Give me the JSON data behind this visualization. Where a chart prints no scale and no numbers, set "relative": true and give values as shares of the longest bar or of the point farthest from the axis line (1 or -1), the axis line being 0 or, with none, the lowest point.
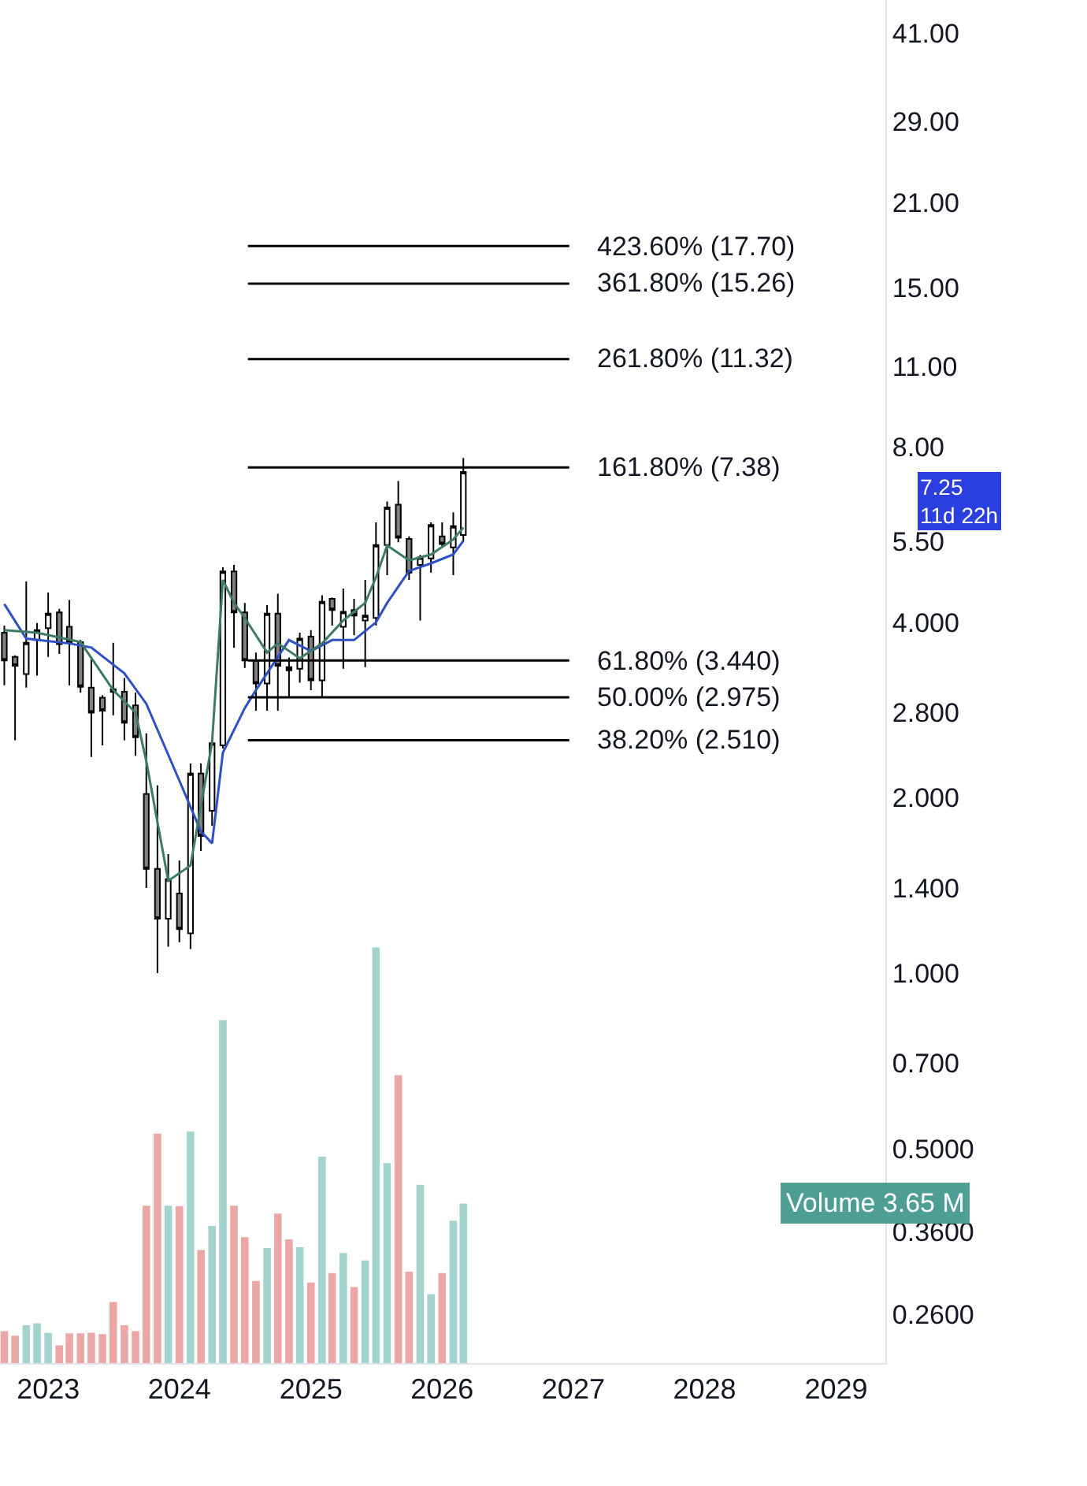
{
  "chart_data": [
    {
      "type": "candlestick",
      "log": "y",
      "tick_labels": "y",
      "x": [
        "2022-09",
        "2022-10",
        "2022-11",
        "2022-12",
        "2023-01",
        "2023-02",
        "2023-03",
        "2023-04",
        "2023-05",
        "2023-06",
        "2023-07",
        "2023-08",
        "2023-09",
        "2023-10",
        "2023-11",
        "2023-12",
        "2024-01",
        "2024-02",
        "2024-03",
        "2024-04",
        "2024-05",
        "2024-06",
        "2024-07",
        "2024-08",
        "2024-09",
        "2024-10",
        "2024-11",
        "2024-12",
        "2025-01",
        "2025-02",
        "2025-03",
        "2025-04",
        "2025-05",
        "2025-06",
        "2025-07",
        "2025-08",
        "2025-09",
        "2025-10",
        "2025-11",
        "2025-12",
        "2026-01",
        "2026-02",
        "2026-03"
      ],
      "ohlc": [
        [
          3.84,
          3.95,
          3.12,
          3.44
        ],
        [
          3.49,
          3.51,
          2.51,
          3.37
        ],
        [
          3.26,
          4.7,
          3.09,
          3.69
        ],
        [
          3.73,
          3.99,
          3.24,
          3.88
        ],
        [
          3.91,
          4.5,
          3.49,
          4.14
        ],
        [
          4.16,
          4.22,
          3.53,
          3.67
        ],
        [
          3.93,
          4.37,
          3.12,
          3.7
        ],
        [
          3.7,
          3.73,
          3.03,
          3.1
        ],
        [
          3.09,
          3.48,
          2.35,
          2.8
        ],
        [
          2.97,
          3.0,
          2.46,
          2.82
        ],
        [
          3.07,
          3.69,
          2.77,
          3.04
        ],
        [
          3.04,
          3.21,
          2.51,
          2.69
        ],
        [
          2.88,
          3.03,
          2.36,
          2.54
        ],
        [
          2.03,
          2.58,
          1.4,
          1.51
        ],
        [
          1.51,
          2.1,
          1.0,
          1.24
        ],
        [
          1.24,
          1.6,
          1.11,
          1.45
        ],
        [
          1.37,
          1.56,
          1.13,
          1.19
        ],
        [
          1.17,
          2.29,
          1.1,
          2.2
        ],
        [
          2.2,
          2.29,
          1.62,
          1.72
        ],
        [
          1.9,
          2.49,
          1.79,
          2.48
        ],
        [
          2.46,
          4.97,
          2.43,
          4.89
        ],
        [
          4.89,
          5.02,
          3.62,
          4.16
        ],
        [
          4.16,
          4.32,
          3.34,
          3.44
        ],
        [
          3.44,
          3.55,
          2.82,
          3.14
        ],
        [
          3.14,
          4.28,
          2.82,
          4.14
        ],
        [
          4.14,
          4.48,
          2.82,
          3.37
        ],
        [
          3.35,
          3.48,
          2.97,
          3.31
        ],
        [
          3.33,
          3.84,
          3.15,
          3.75
        ],
        [
          3.78,
          3.88,
          3.06,
          3.18
        ],
        [
          3.18,
          4.45,
          2.98,
          4.34
        ],
        [
          4.39,
          4.41,
          3.95,
          4.2
        ],
        [
          3.93,
          4.57,
          3.33,
          4.17
        ],
        [
          4.2,
          4.39,
          3.8,
          4.11
        ],
        [
          4.03,
          4.73,
          3.35,
          4.11
        ],
        [
          4.07,
          5.94,
          3.95,
          5.43
        ],
        [
          5.43,
          6.45,
          4.82,
          6.3
        ],
        [
          6.37,
          6.99,
          5.49,
          5.59
        ],
        [
          5.56,
          5.62,
          4.73,
          4.87
        ],
        [
          5.02,
          5.22,
          4.03,
          5.17
        ],
        [
          5.15,
          5.94,
          4.87,
          5.88
        ],
        [
          5.62,
          5.94,
          5.4,
          5.45
        ],
        [
          5.38,
          6.18,
          4.82,
          5.85
        ],
        [
          5.65,
          7.66,
          5.51,
          7.25
        ]
      ],
      "series": [
        {
          "type": "line",
          "color": "#2f4fc4",
          "x": [
            "2022-09",
            "2022-11",
            "2023-03",
            "2023-05",
            "2023-08",
            "2023-10",
            "2024-01",
            "2024-03",
            "2024-04",
            "2024-05",
            "2024-07",
            "2024-08",
            "2024-11",
            "2025-01",
            "2025-03",
            "2025-05",
            "2025-07",
            "2025-08",
            "2025-10",
            "2025-12",
            "2026-02",
            "2026-03"
          ],
          "values": [
            4.3,
            3.75,
            3.68,
            3.62,
            3.27,
            2.9,
            2.14,
            1.75,
            1.67,
            2.39,
            2.85,
            3.06,
            3.73,
            3.57,
            3.73,
            3.73,
            4.0,
            4.32,
            4.9,
            5.05,
            5.23,
            5.52
          ]
        },
        {
          "type": "line",
          "color": "#3d7a68",
          "x": [
            "2022-09",
            "2022-12",
            "2023-04",
            "2023-07",
            "2023-09",
            "2023-10",
            "2023-12",
            "2024-02",
            "2024-04",
            "2024-05",
            "2024-06",
            "2024-07",
            "2024-09",
            "2024-10",
            "2024-12",
            "2025-02",
            "2025-04",
            "2025-06",
            "2025-07",
            "2025-08",
            "2025-10",
            "2025-12",
            "2026-02",
            "2026-03"
          ],
          "values": [
            3.88,
            3.84,
            3.7,
            3.06,
            2.8,
            2.31,
            1.44,
            1.53,
            2.49,
            4.73,
            4.32,
            4.07,
            3.55,
            3.68,
            3.47,
            3.68,
            4.03,
            4.32,
            4.78,
            5.42,
            5.11,
            5.23,
            5.55,
            5.82
          ]
        }
      ],
      "xlim": [
        "2022-08-20",
        "2029-05-18"
      ],
      "ylim": [
        0.214,
        46.8
      ],
      "yticks": [
        {
          "value": 41,
          "label": "41.00"
        },
        {
          "value": 29,
          "label": "29.00"
        },
        {
          "value": 21,
          "label": "21.00"
        },
        {
          "value": 15,
          "label": "15.00"
        },
        {
          "value": 11,
          "label": "11.00"
        },
        {
          "value": 8,
          "label": "8.00"
        },
        {
          "value": 5.5,
          "label": "5.50"
        },
        {
          "value": 4,
          "label": "4.000"
        },
        {
          "value": 2.8,
          "label": "2.800"
        },
        {
          "value": 2,
          "label": "2.000"
        },
        {
          "value": 1.4,
          "label": "1.400"
        },
        {
          "value": 1,
          "label": "1.000"
        },
        {
          "value": 0.7,
          "label": "0.700"
        },
        {
          "value": 0.5,
          "label": "0.5000"
        },
        {
          "value": 0.36,
          "label": "0.3600"
        },
        {
          "value": 0.26,
          "label": "0.2600"
        }
      ],
      "ref_lines": [
        {
          "axis": "y",
          "value": 17.7,
          "label": "423.60% (17.70)",
          "color": "#000000"
        },
        {
          "axis": "y",
          "value": 15.26,
          "label": "361.80% (15.26)",
          "color": "#000000"
        },
        {
          "axis": "y",
          "value": 11.32,
          "label": "261.80% (11.32)",
          "color": "#000000"
        },
        {
          "axis": "y",
          "value": 7.38,
          "label": "161.80% (7.38)",
          "color": "#000000"
        },
        {
          "axis": "y",
          "value": 3.44,
          "label": "61.80% (3.440)",
          "color": "#000000"
        },
        {
          "axis": "y",
          "value": 2.975,
          "label": "50.00% (2.975)",
          "color": "#000000"
        },
        {
          "axis": "y",
          "value": 2.51,
          "label": "38.20% (2.510)",
          "color": "#000000"
        }
      ],
      "annotations": [
        "7.25\n11d 22h"
      ]
    },
    {
      "type": "bar",
      "relative": true,
      "tick_labels": "x",
      "x": [
        "2022-09",
        "2022-10",
        "2022-11",
        "2022-12",
        "2023-01",
        "2023-02",
        "2023-03",
        "2023-04",
        "2023-05",
        "2023-06",
        "2023-07",
        "2023-08",
        "2023-09",
        "2023-10",
        "2023-11",
        "2023-12",
        "2024-01",
        "2024-02",
        "2024-03",
        "2024-04",
        "2024-05",
        "2024-06",
        "2024-07",
        "2024-08",
        "2024-09",
        "2024-10",
        "2024-11",
        "2024-12",
        "2025-01",
        "2025-02",
        "2025-03",
        "2025-04",
        "2025-05",
        "2025-06",
        "2025-07",
        "2025-08",
        "2025-09",
        "2025-10",
        "2025-11",
        "2025-12",
        "2026-01",
        "2026-02",
        "2026-03"
      ],
      "values": [
        0.077,
        0.066,
        0.091,
        0.096,
        0.073,
        0.043,
        0.072,
        0.072,
        0.073,
        0.07,
        0.147,
        0.091,
        0.077,
        0.379,
        0.552,
        0.379,
        0.378,
        0.557,
        0.272,
        0.33,
        0.825,
        0.379,
        0.303,
        0.198,
        0.277,
        0.36,
        0.298,
        0.279,
        0.194,
        0.497,
        0.217,
        0.265,
        0.183,
        0.247,
        1,
        0.481,
        0.693,
        0.22,
        0.429,
        0.166,
        0.217,
        0.343,
        0.384
      ],
      "colors": [
        "#eba7a5",
        "#eba7a5",
        "#a3d3cf",
        "#a3d3cf",
        "#a3d3cf",
        "#eba7a5",
        "#eba7a5",
        "#eba7a5",
        "#eba7a5",
        "#eba7a5",
        "#eba7a5",
        "#eba7a5",
        "#eba7a5",
        "#eba7a5",
        "#eba7a5",
        "#a3d3cf",
        "#eba7a5",
        "#a3d3cf",
        "#eba7a5",
        "#a3d3cf",
        "#a3d3cf",
        "#eba7a5",
        "#eba7a5",
        "#eba7a5",
        "#a3d3cf",
        "#eba7a5",
        "#eba7a5",
        "#a3d3cf",
        "#eba7a5",
        "#a3d3cf",
        "#eba7a5",
        "#a3d3cf",
        "#eba7a5",
        "#a3d3cf",
        "#a3d3cf",
        "#a3d3cf",
        "#eba7a5",
        "#eba7a5",
        "#a3d3cf",
        "#a3d3cf",
        "#eba7a5",
        "#a3d3cf",
        "#a3d3cf"
      ],
      "xlim": [
        "2022-08-20",
        "2029-05-18"
      ],
      "xticks": [
        {
          "value": "2023-01-01",
          "label": "2023"
        },
        {
          "value": "2024-01-01",
          "label": "2024"
        },
        {
          "value": "2025-01-01",
          "label": "2025"
        },
        {
          "value": "2026-01-01",
          "label": "2026"
        },
        {
          "value": "2027-01-01",
          "label": "2027"
        },
        {
          "value": "2028-01-01",
          "label": "2028"
        },
        {
          "value": "2029-01-01",
          "label": "2029"
        }
      ],
      "annotations": [
        "Volume 3.65 M"
      ]
    }
  ]
}
